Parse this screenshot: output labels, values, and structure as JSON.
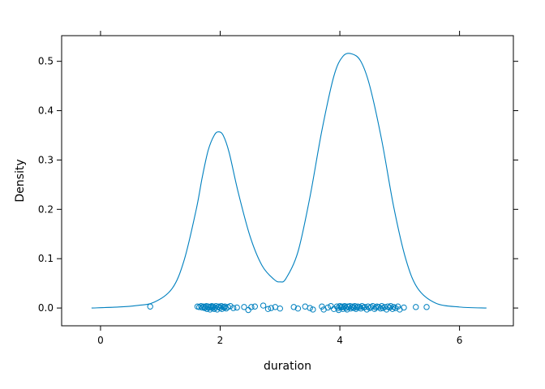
{
  "chart_data": {
    "type": "line",
    "title": "",
    "xlabel": "duration",
    "ylabel": "Density",
    "xlim": [
      -0.65,
      6.9
    ],
    "ylim": [
      -0.036,
      0.552
    ],
    "x_ticks": [
      0,
      2,
      4,
      6
    ],
    "y_ticks": [
      0.0,
      0.1,
      0.2,
      0.3,
      0.4,
      0.5
    ],
    "y_tick_labels": [
      "0.0",
      "0.1",
      "0.2",
      "0.3",
      "0.4",
      "0.5"
    ],
    "grid": false,
    "colors": {
      "series": "#0080BF",
      "axis": "#000000",
      "background": "#FFFFFF"
    },
    "series": [
      {
        "kind": "density",
        "x": [
          -0.15,
          0.3,
          0.6,
          0.9,
          1.2,
          1.4,
          1.6,
          1.7,
          1.8,
          1.9,
          1.97,
          2.05,
          2.15,
          2.3,
          2.5,
          2.7,
          2.9,
          3.0,
          3.1,
          3.3,
          3.5,
          3.7,
          3.9,
          4.05,
          4.2,
          4.35,
          4.5,
          4.7,
          4.9,
          5.1,
          5.3,
          5.6,
          6.0,
          6.45
        ],
        "y": [
          0.0,
          0.002,
          0.005,
          0.012,
          0.04,
          0.098,
          0.2,
          0.265,
          0.32,
          0.35,
          0.357,
          0.35,
          0.315,
          0.235,
          0.145,
          0.086,
          0.058,
          0.053,
          0.06,
          0.114,
          0.225,
          0.36,
          0.47,
          0.51,
          0.515,
          0.5,
          0.45,
          0.34,
          0.205,
          0.1,
          0.04,
          0.01,
          0.002,
          0.0
        ]
      },
      {
        "kind": "rug",
        "x": [
          0.83,
          1.62,
          1.65,
          1.68,
          1.7,
          1.72,
          1.74,
          1.75,
          1.77,
          1.78,
          1.8,
          1.82,
          1.83,
          1.85,
          1.86,
          1.87,
          1.88,
          1.9,
          1.92,
          1.93,
          1.95,
          1.97,
          1.98,
          2.0,
          2.02,
          2.03,
          2.05,
          2.07,
          2.08,
          2.1,
          2.13,
          2.17,
          2.22,
          2.28,
          2.4,
          2.47,
          2.52,
          2.58,
          2.72,
          2.8,
          2.85,
          2.92,
          3.0,
          3.23,
          3.3,
          3.42,
          3.5,
          3.55,
          3.7,
          3.73,
          3.8,
          3.85,
          3.9,
          3.95,
          3.97,
          3.98,
          4.0,
          4.02,
          4.03,
          4.05,
          4.07,
          4.08,
          4.1,
          4.12,
          4.13,
          4.15,
          4.17,
          4.18,
          4.2,
          4.22,
          4.23,
          4.25,
          4.27,
          4.28,
          4.3,
          4.33,
          4.35,
          4.37,
          4.4,
          4.42,
          4.45,
          4.47,
          4.5,
          4.52,
          4.55,
          4.58,
          4.6,
          4.62,
          4.65,
          4.68,
          4.7,
          4.72,
          4.75,
          4.78,
          4.8,
          4.83,
          4.85,
          4.88,
          4.9,
          4.93,
          4.97,
          5.0,
          5.07,
          5.27,
          5.45
        ],
        "y": [
          0.003,
          0.003,
          0.002,
          0.004,
          0.001,
          0.003,
          0.0,
          0.002,
          0.004,
          -0.002,
          0.003,
          0.001,
          -0.003,
          0.002,
          0.004,
          0.0,
          0.003,
          -0.002,
          0.001,
          0.004,
          -0.003,
          0.002,
          0.003,
          0.0,
          0.004,
          -0.002,
          0.002,
          0.001,
          0.003,
          -0.001,
          0.002,
          0.004,
          0.0,
          0.001,
          0.002,
          -0.004,
          0.002,
          0.003,
          0.005,
          -0.002,
          0.0,
          0.002,
          -0.001,
          0.002,
          -0.001,
          0.003,
          0.0,
          -0.003,
          0.003,
          -0.003,
          0.001,
          0.004,
          -0.002,
          0.003,
          0.0,
          -0.004,
          0.004,
          0.001,
          0.003,
          -0.002,
          0.002,
          0.004,
          0.0,
          -0.003,
          0.003,
          0.002,
          0.004,
          -0.001,
          0.002,
          0.003,
          0.0,
          0.004,
          -0.002,
          0.001,
          0.003,
          0.002,
          -0.001,
          0.004,
          0.001,
          0.002,
          -0.003,
          0.003,
          0.0,
          0.002,
          0.004,
          -0.002,
          0.001,
          0.003,
          0.002,
          -0.001,
          0.004,
          0.0,
          0.002,
          -0.003,
          0.003,
          0.001,
          0.004,
          -0.002,
          0.002,
          0.0,
          0.003,
          -0.003,
          0.001,
          0.002,
          0.002
        ]
      }
    ]
  }
}
